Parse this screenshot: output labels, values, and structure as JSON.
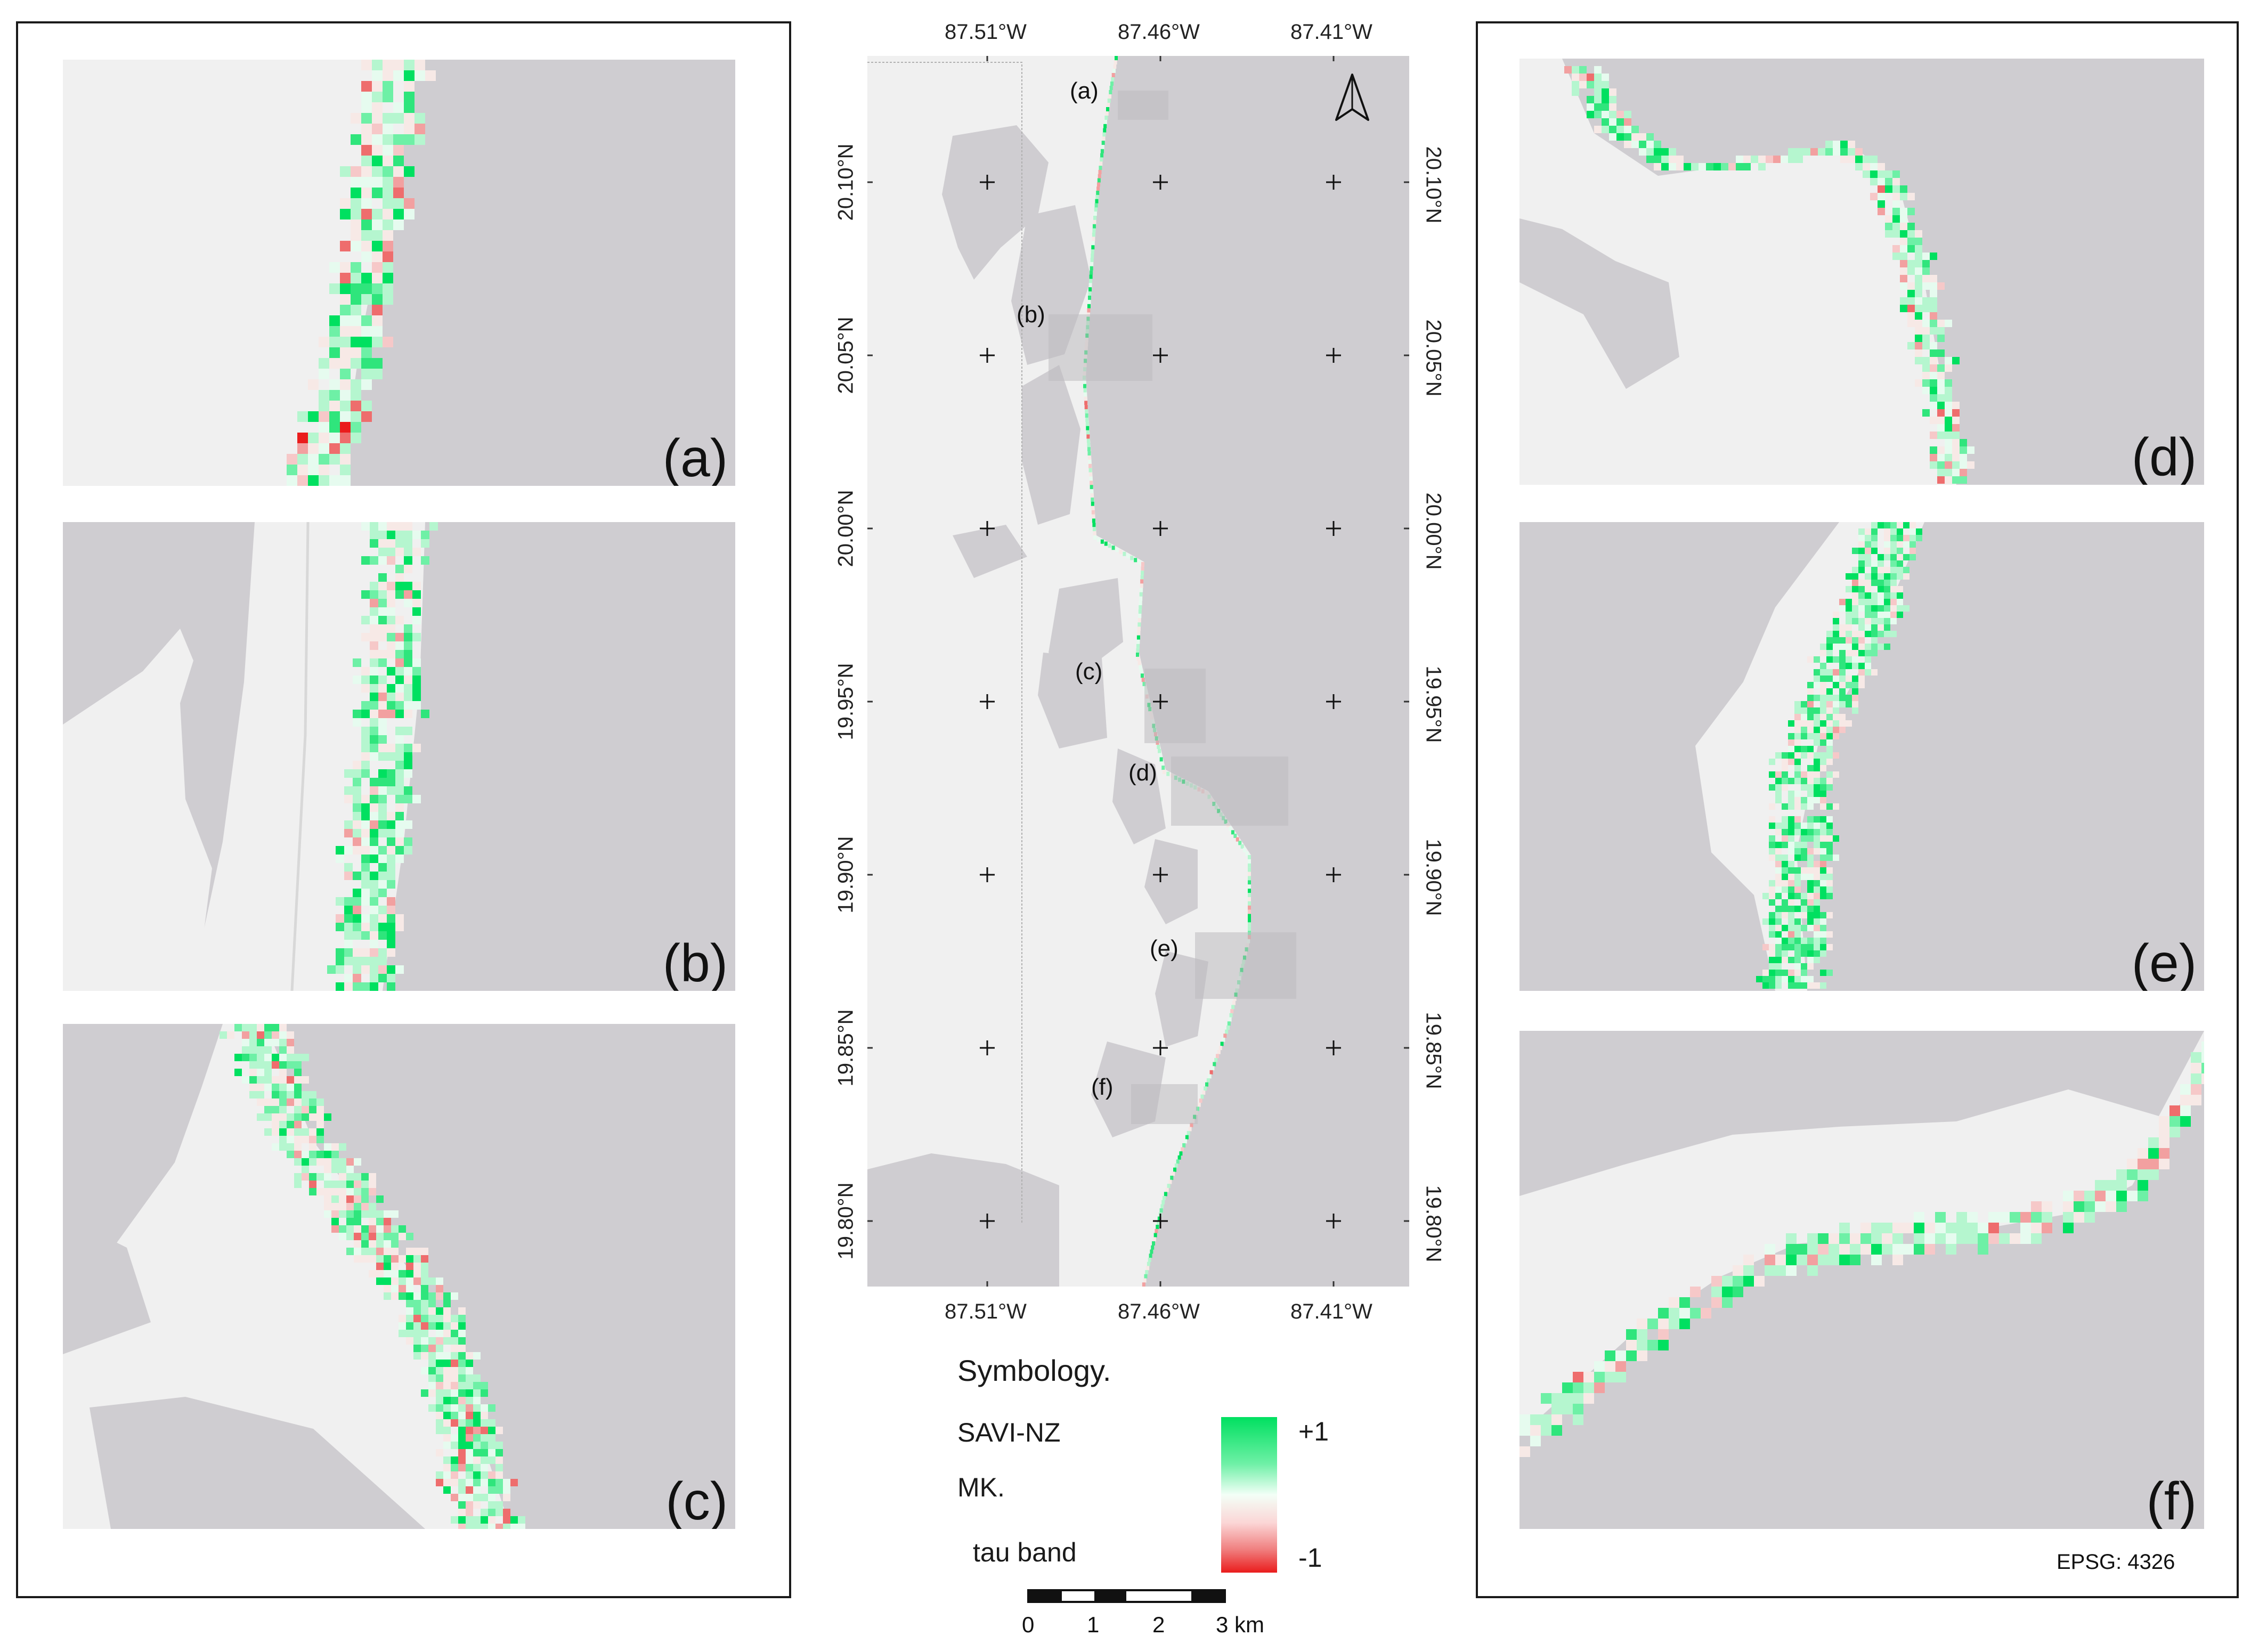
{
  "panels": [
    {
      "id": "a",
      "label": "(a)"
    },
    {
      "id": "b",
      "label": "(b)"
    },
    {
      "id": "c",
      "label": "(c)"
    },
    {
      "id": "d",
      "label": "(d)"
    },
    {
      "id": "e",
      "label": "(e)"
    },
    {
      "id": "f",
      "label": "(f)"
    }
  ],
  "overview": {
    "lon_ticks": [
      "87.51°W",
      "87.46°W",
      "87.41°W"
    ],
    "lat_ticks": [
      "20.10°N",
      "20.05°N",
      "20.00°N",
      "19.95°N",
      "19.90°N",
      "19.85°N",
      "19.80°N"
    ],
    "inset_labels": [
      "(a)",
      "(b)",
      "(c)",
      "(d)",
      "(e)",
      "(f)"
    ],
    "north_arrow_icon": "north-arrow-icon"
  },
  "legend": {
    "title": "Symbology.",
    "line1": "SAVI-NZ",
    "line2": "MK.",
    "line3": "tau band",
    "max_label": "+1",
    "min_label": "-1",
    "colors": {
      "positive": "#00e060",
      "neutral": "#f3fff7",
      "negative": "#ea1c1c"
    }
  },
  "scale": {
    "labels": [
      "0",
      "1",
      "2",
      "3 km"
    ]
  },
  "crs": "EPSG: 4326",
  "colors": {
    "land": "#f0f0f0",
    "water": "#cfcdd1",
    "frame": "#1a1a1a"
  }
}
